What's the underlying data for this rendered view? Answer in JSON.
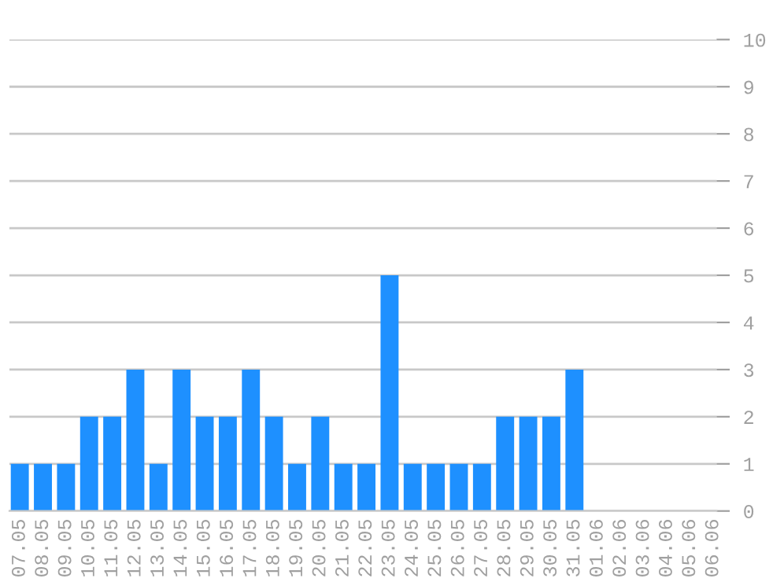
{
  "chart_data": {
    "type": "bar",
    "categories": [
      "07.05",
      "08.05",
      "09.05",
      "10.05",
      "11.05",
      "12.05",
      "13.05",
      "14.05",
      "15.05",
      "16.05",
      "17.05",
      "18.05",
      "19.05",
      "20.05",
      "21.05",
      "22.05",
      "23.05",
      "24.05",
      "25.05",
      "26.05",
      "27.05",
      "28.05",
      "29.05",
      "30.05",
      "31.05",
      "01.06",
      "02.06",
      "03.06",
      "04.06",
      "05.06",
      "06.06"
    ],
    "values": [
      1,
      1,
      1,
      2,
      2,
      3,
      1,
      3,
      2,
      2,
      3,
      2,
      1,
      2,
      1,
      1,
      5,
      1,
      1,
      1,
      1,
      2,
      2,
      2,
      3,
      0,
      0,
      0,
      0,
      0,
      0
    ],
    "color": "#1e90ff",
    "ylim": [
      0,
      10
    ],
    "yticks": [
      0,
      1,
      2,
      3,
      4,
      5,
      6,
      7,
      8,
      9,
      10
    ],
    "grid": "y"
  }
}
